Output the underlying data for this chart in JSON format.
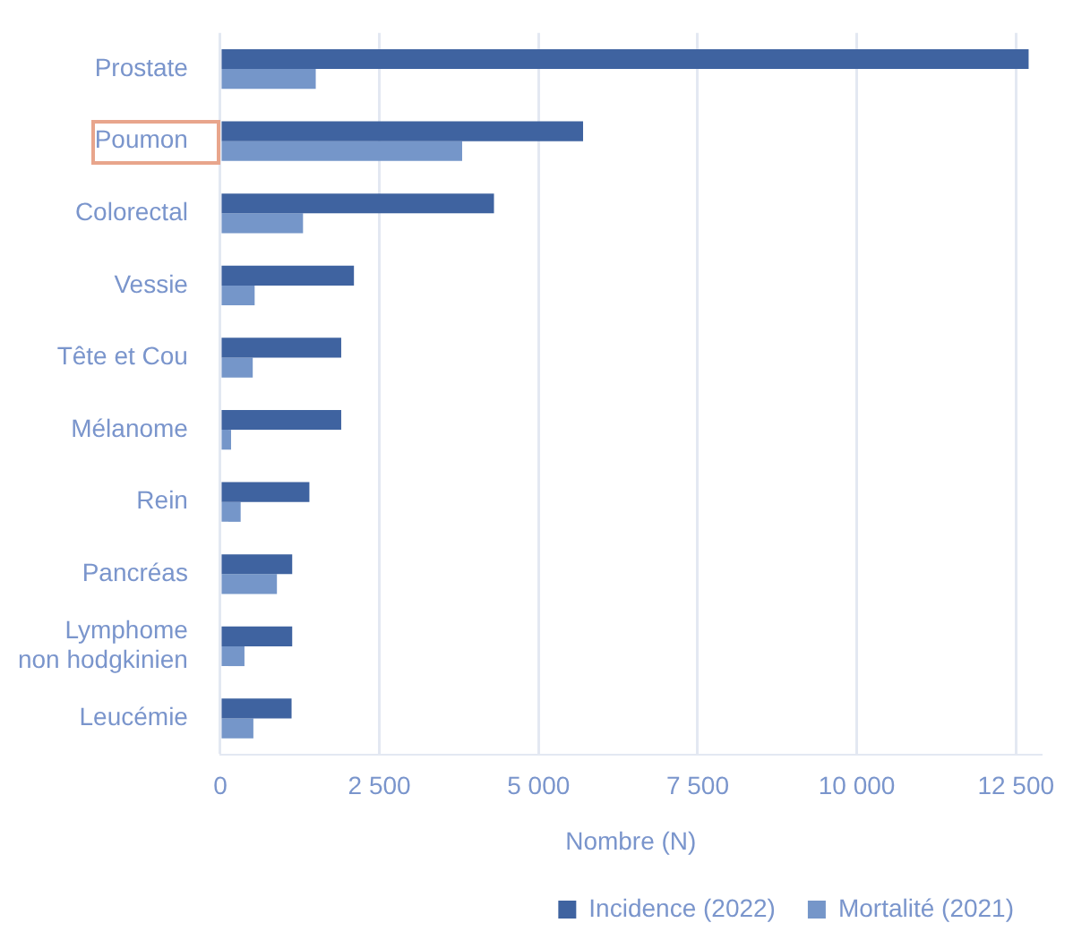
{
  "chart_data": {
    "type": "bar",
    "orientation": "horizontal",
    "xlabel": "Nombre (N)",
    "categories": [
      "Prostate",
      "Poumon",
      "Colorectal",
      "Vessie",
      "Tête et Cou",
      "Mélanome",
      "Rein",
      "Pancréas",
      "Lymphome non hodgkinien",
      "Leucémie"
    ],
    "series": [
      {
        "name": "Incidence (2022)",
        "color": "#3f63a0",
        "values": [
          12700,
          5700,
          4300,
          2100,
          1900,
          1900,
          1400,
          1130,
          1130,
          1120
        ]
      },
      {
        "name": "Mortalité (2021)",
        "color": "#7596c9",
        "values": [
          1500,
          3800,
          1300,
          540,
          510,
          170,
          320,
          890,
          380,
          520
        ]
      }
    ],
    "xlim": [
      0,
      12900
    ],
    "xticks": [
      0,
      {
        "value": 2500,
        "label": "2 500"
      },
      {
        "value": 5000,
        "label": "5 000"
      },
      {
        "value": 7500,
        "label": "7 500"
      },
      {
        "value": 10000,
        "label": "10 000"
      },
      {
        "value": 12500,
        "label": "12 500"
      }
    ],
    "grid": "x",
    "legend": "bottom right"
  }
}
